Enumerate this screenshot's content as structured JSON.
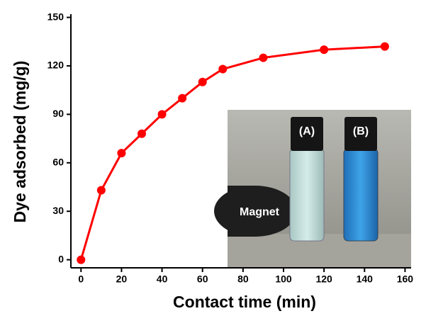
{
  "chart_data": {
    "type": "line",
    "x_label": "Contact time (min)",
    "y_label": "Dye adsorbed (mg/g)",
    "x": [
      0,
      10,
      20,
      30,
      40,
      50,
      60,
      70,
      90,
      120,
      150
    ],
    "series": [
      {
        "color": "#ff0000",
        "values": [
          0,
          43,
          66,
          78,
          90,
          100,
          110,
          118,
          125,
          130,
          132
        ]
      }
    ],
    "xlim": [
      -5,
      163
    ],
    "xticks": [
      0,
      20,
      40,
      60,
      80,
      100,
      120,
      140,
      160
    ],
    "ylim": [
      -5,
      152
    ],
    "yticks": [
      0,
      30,
      60,
      90,
      120,
      150
    ],
    "annotations": [
      "(A)",
      "(B)",
      "Magnet"
    ]
  }
}
